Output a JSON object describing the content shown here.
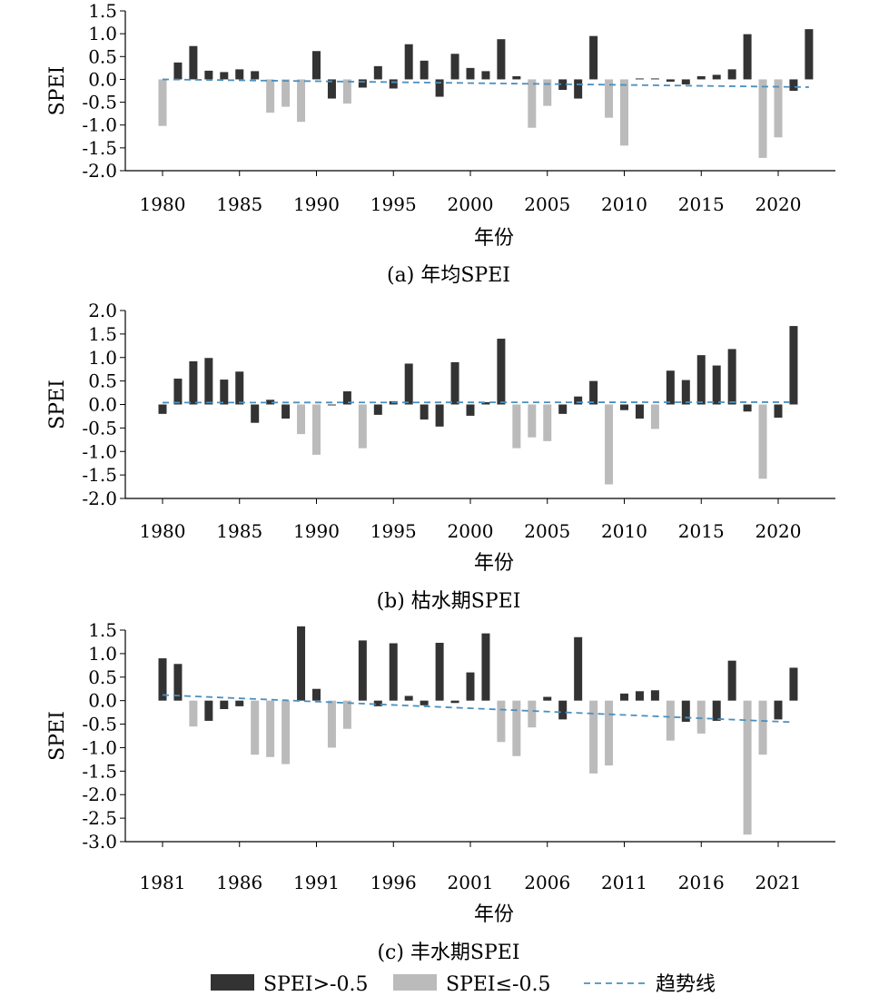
{
  "colors": {
    "above": "#333333",
    "below": "#bbbbbb",
    "trend": "#4a90c0"
  },
  "legend": {
    "above_label": "SPEI>-0.5",
    "below_label": "SPEI≤-0.5",
    "trend_label": "趋势线"
  },
  "chart_data": [
    {
      "type": "bar",
      "caption": "(a) 年均SPEI",
      "xlabel": "年份",
      "ylabel": "SPEI",
      "ylim": [
        -2.0,
        1.5
      ],
      "yticks": [
        "1.5",
        "1.0",
        "0.5",
        "0.0",
        "-0.5",
        "-1.0",
        "-1.5",
        "-2.0"
      ],
      "ytick_values": [
        1.5,
        1.0,
        0.5,
        0.0,
        -0.5,
        -1.0,
        -1.5,
        -2.0
      ],
      "x": [
        1980,
        1981,
        1982,
        1983,
        1984,
        1985,
        1986,
        1987,
        1988,
        1989,
        1990,
        1991,
        1992,
        1993,
        1994,
        1995,
        1996,
        1997,
        1998,
        1999,
        2000,
        2001,
        2002,
        2003,
        2004,
        2005,
        2006,
        2007,
        2008,
        2009,
        2010,
        2011,
        2012,
        2013,
        2014,
        2015,
        2016,
        2017,
        2018,
        2019,
        2020,
        2021,
        2022
      ],
      "xticks": [
        "1980",
        "1985",
        "1990",
        "1995",
        "2000",
        "2005",
        "2010",
        "2015",
        "2020"
      ],
      "xtick_values": [
        1980,
        1985,
        1990,
        1995,
        2000,
        2005,
        2010,
        2015,
        2020
      ],
      "values": [
        -1.02,
        0.37,
        0.73,
        0.19,
        0.16,
        0.22,
        0.18,
        -0.73,
        -0.6,
        -0.93,
        0.62,
        -0.42,
        -0.53,
        -0.18,
        0.29,
        -0.2,
        0.77,
        0.41,
        -0.38,
        0.56,
        0.25,
        0.18,
        0.88,
        0.07,
        -1.06,
        -0.58,
        -0.23,
        -0.42,
        0.95,
        -0.84,
        -1.45,
        0.02,
        0.02,
        -0.05,
        -0.11,
        0.07,
        0.1,
        0.22,
        0.99,
        -1.72,
        -1.27,
        -0.25,
        1.1
      ],
      "threshold": -0.5,
      "trend": {
        "x": [
          1980,
          2022
        ],
        "y": [
          0.0,
          -0.17
        ]
      }
    },
    {
      "type": "bar",
      "caption": "(b) 枯水期SPEI",
      "xlabel": "年份",
      "ylabel": "SPEI",
      "ylim": [
        -2.0,
        2.0
      ],
      "yticks": [
        "2.0",
        "1.5",
        "1.0",
        "0.5",
        "0.0",
        "-0.5",
        "-1.0",
        "-1.5",
        "-2.0"
      ],
      "ytick_values": [
        2.0,
        1.5,
        1.0,
        0.5,
        0.0,
        -0.5,
        -1.0,
        -1.5,
        -2.0
      ],
      "x": [
        1980,
        1981,
        1982,
        1983,
        1984,
        1985,
        1986,
        1987,
        1988,
        1989,
        1990,
        1991,
        1992,
        1993,
        1994,
        1995,
        1996,
        1997,
        1998,
        1999,
        2000,
        2001,
        2002,
        2003,
        2004,
        2005,
        2006,
        2007,
        2008,
        2009,
        2010,
        2011,
        2012,
        2013,
        2014,
        2015,
        2016,
        2017,
        2018,
        2019,
        2020,
        2021
      ],
      "xticks": [
        "1980",
        "1985",
        "1990",
        "1995",
        "2000",
        "2005",
        "2010",
        "2015",
        "2020"
      ],
      "xtick_values": [
        1980,
        1985,
        1990,
        1995,
        2000,
        2005,
        2010,
        2015,
        2020
      ],
      "values": [
        -0.2,
        0.55,
        0.92,
        0.99,
        0.53,
        0.7,
        -0.39,
        0.1,
        -0.3,
        -0.63,
        -1.07,
        0.0,
        0.28,
        -0.93,
        -0.22,
        0.07,
        0.87,
        -0.32,
        -0.47,
        0.9,
        -0.24,
        0.05,
        1.4,
        -0.93,
        -0.7,
        -0.78,
        -0.2,
        0.17,
        0.5,
        -1.7,
        -0.12,
        -0.3,
        -0.52,
        0.72,
        0.52,
        1.05,
        0.83,
        1.18,
        -0.15,
        -1.58,
        -0.28,
        1.67
      ],
      "threshold": -0.5,
      "trend": {
        "x": [
          1980,
          2021
        ],
        "y": [
          0.04,
          0.05
        ]
      }
    },
    {
      "type": "bar",
      "caption": "(c) 丰水期SPEI",
      "xlabel": "年份",
      "ylabel": "SPEI",
      "ylim": [
        -3.0,
        1.5
      ],
      "yticks": [
        "1.5",
        "1.0",
        "0.5",
        "0.0",
        "-0.5",
        "-1.0",
        "-1.5",
        "-2.0",
        "-2.5",
        "-3.0"
      ],
      "ytick_values": [
        1.5,
        1.0,
        0.5,
        0.0,
        -0.5,
        -1.0,
        -1.5,
        -2.0,
        -2.5,
        -3.0
      ],
      "x": [
        1981,
        1982,
        1983,
        1984,
        1985,
        1986,
        1987,
        1988,
        1989,
        1990,
        1991,
        1992,
        1993,
        1994,
        1995,
        1996,
        1997,
        1998,
        1999,
        2000,
        2001,
        2002,
        2003,
        2004,
        2005,
        2006,
        2007,
        2008,
        2009,
        2010,
        2011,
        2012,
        2013,
        2014,
        2015,
        2016,
        2017,
        2018,
        2019,
        2020,
        2021,
        2022
      ],
      "xticks": [
        "1981",
        "1986",
        "1991",
        "1996",
        "2001",
        "2006",
        "2011",
        "2016",
        "2021"
      ],
      "xtick_values": [
        1981,
        1986,
        1991,
        1996,
        2001,
        2006,
        2011,
        2016,
        2021
      ],
      "values": [
        0.9,
        0.78,
        -0.55,
        -0.43,
        -0.18,
        -0.12,
        -1.15,
        -1.2,
        -1.35,
        1.58,
        0.25,
        -1.0,
        -0.6,
        1.28,
        -0.12,
        1.22,
        0.1,
        -0.1,
        1.23,
        -0.05,
        0.6,
        1.43,
        -0.88,
        -1.18,
        -0.57,
        0.08,
        -0.4,
        1.35,
        -1.55,
        -1.38,
        0.15,
        0.2,
        0.22,
        -0.85,
        -0.45,
        -0.7,
        -0.43,
        0.85,
        -2.85,
        -1.15,
        -0.4,
        0.7
      ],
      "threshold": -0.5,
      "trend": {
        "x": [
          1981,
          2022
        ],
        "y": [
          0.12,
          -0.46
        ]
      }
    }
  ]
}
